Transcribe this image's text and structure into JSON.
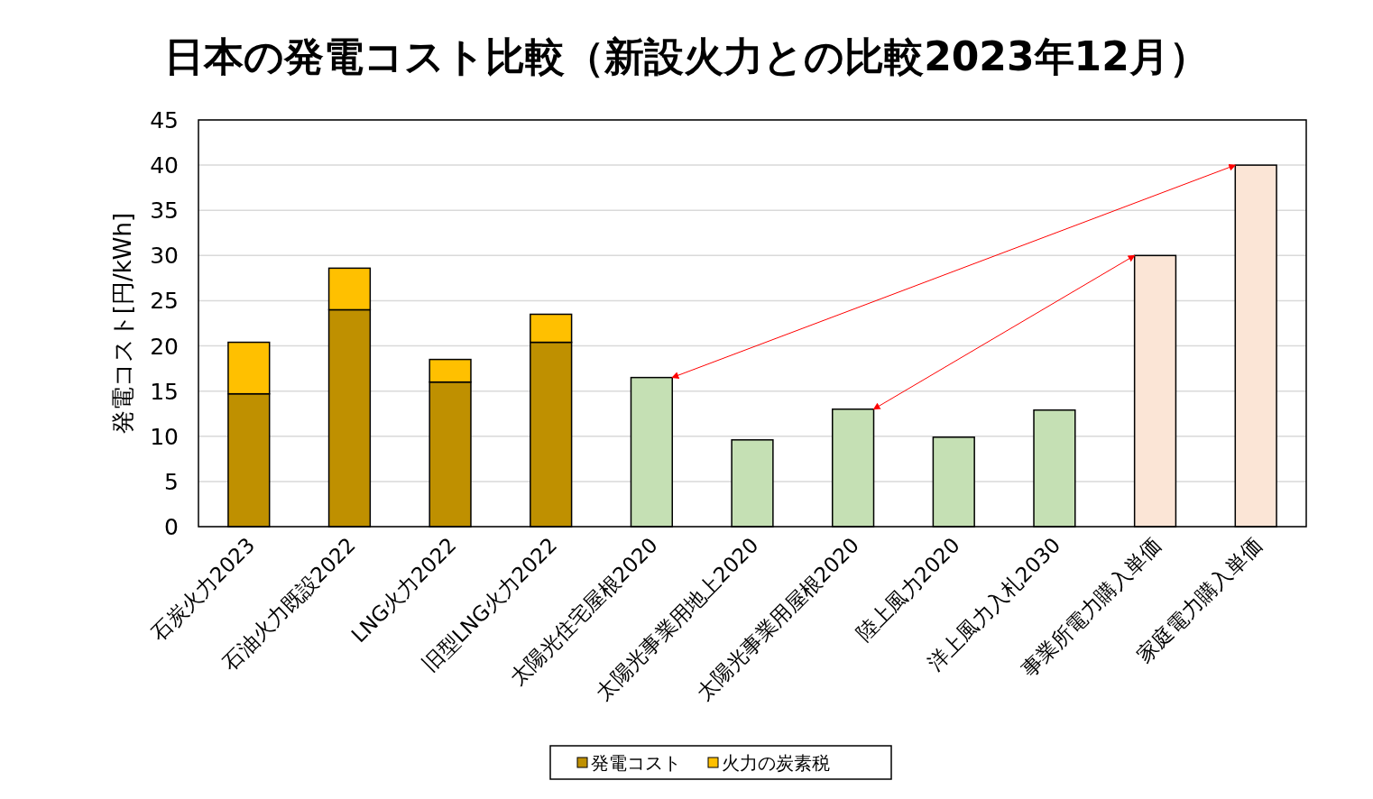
{
  "chart_data": {
    "type": "bar",
    "title": "日本の発電コスト比較（新設火力との比較2023年12月）",
    "ylabel": "発電コスト[円/kWh]",
    "categories": [
      "石炭火力2023",
      "石油火力既設2022",
      "LNG火力2022",
      "旧型LNG火力2022",
      "太陽光住宅屋根2020",
      "太陽光事業用地上2020",
      "太陽光事業用屋根2020",
      "陸上風力2020",
      "洋上風力入札2030",
      "事業所電力購入単価",
      "家庭電力購入単価"
    ],
    "stacked": true,
    "series": [
      {
        "name": "発電コスト",
        "color": "#bf9000",
        "colors": [
          "#bf9000",
          "#bf9000",
          "#bf9000",
          "#bf9000",
          "#c5e0b4",
          "#c5e0b4",
          "#c5e0b4",
          "#c5e0b4",
          "#c5e0b4",
          "#fbe5d6",
          "#fbe5d6"
        ],
        "values": [
          14.7,
          24.0,
          16.0,
          20.4,
          16.5,
          9.6,
          13.0,
          9.9,
          12.9,
          30,
          40
        ]
      },
      {
        "name": "火力の炭素税",
        "color": "#ffc000",
        "values": [
          5.7,
          4.6,
          2.5,
          3.1,
          null,
          null,
          null,
          null,
          null,
          null,
          null
        ]
      }
    ],
    "ylim": [
      0,
      45
    ],
    "yticks": [
      0,
      5,
      10,
      15,
      20,
      25,
      30,
      35,
      40,
      45
    ],
    "grid": "y",
    "legend": "bottom"
  }
}
